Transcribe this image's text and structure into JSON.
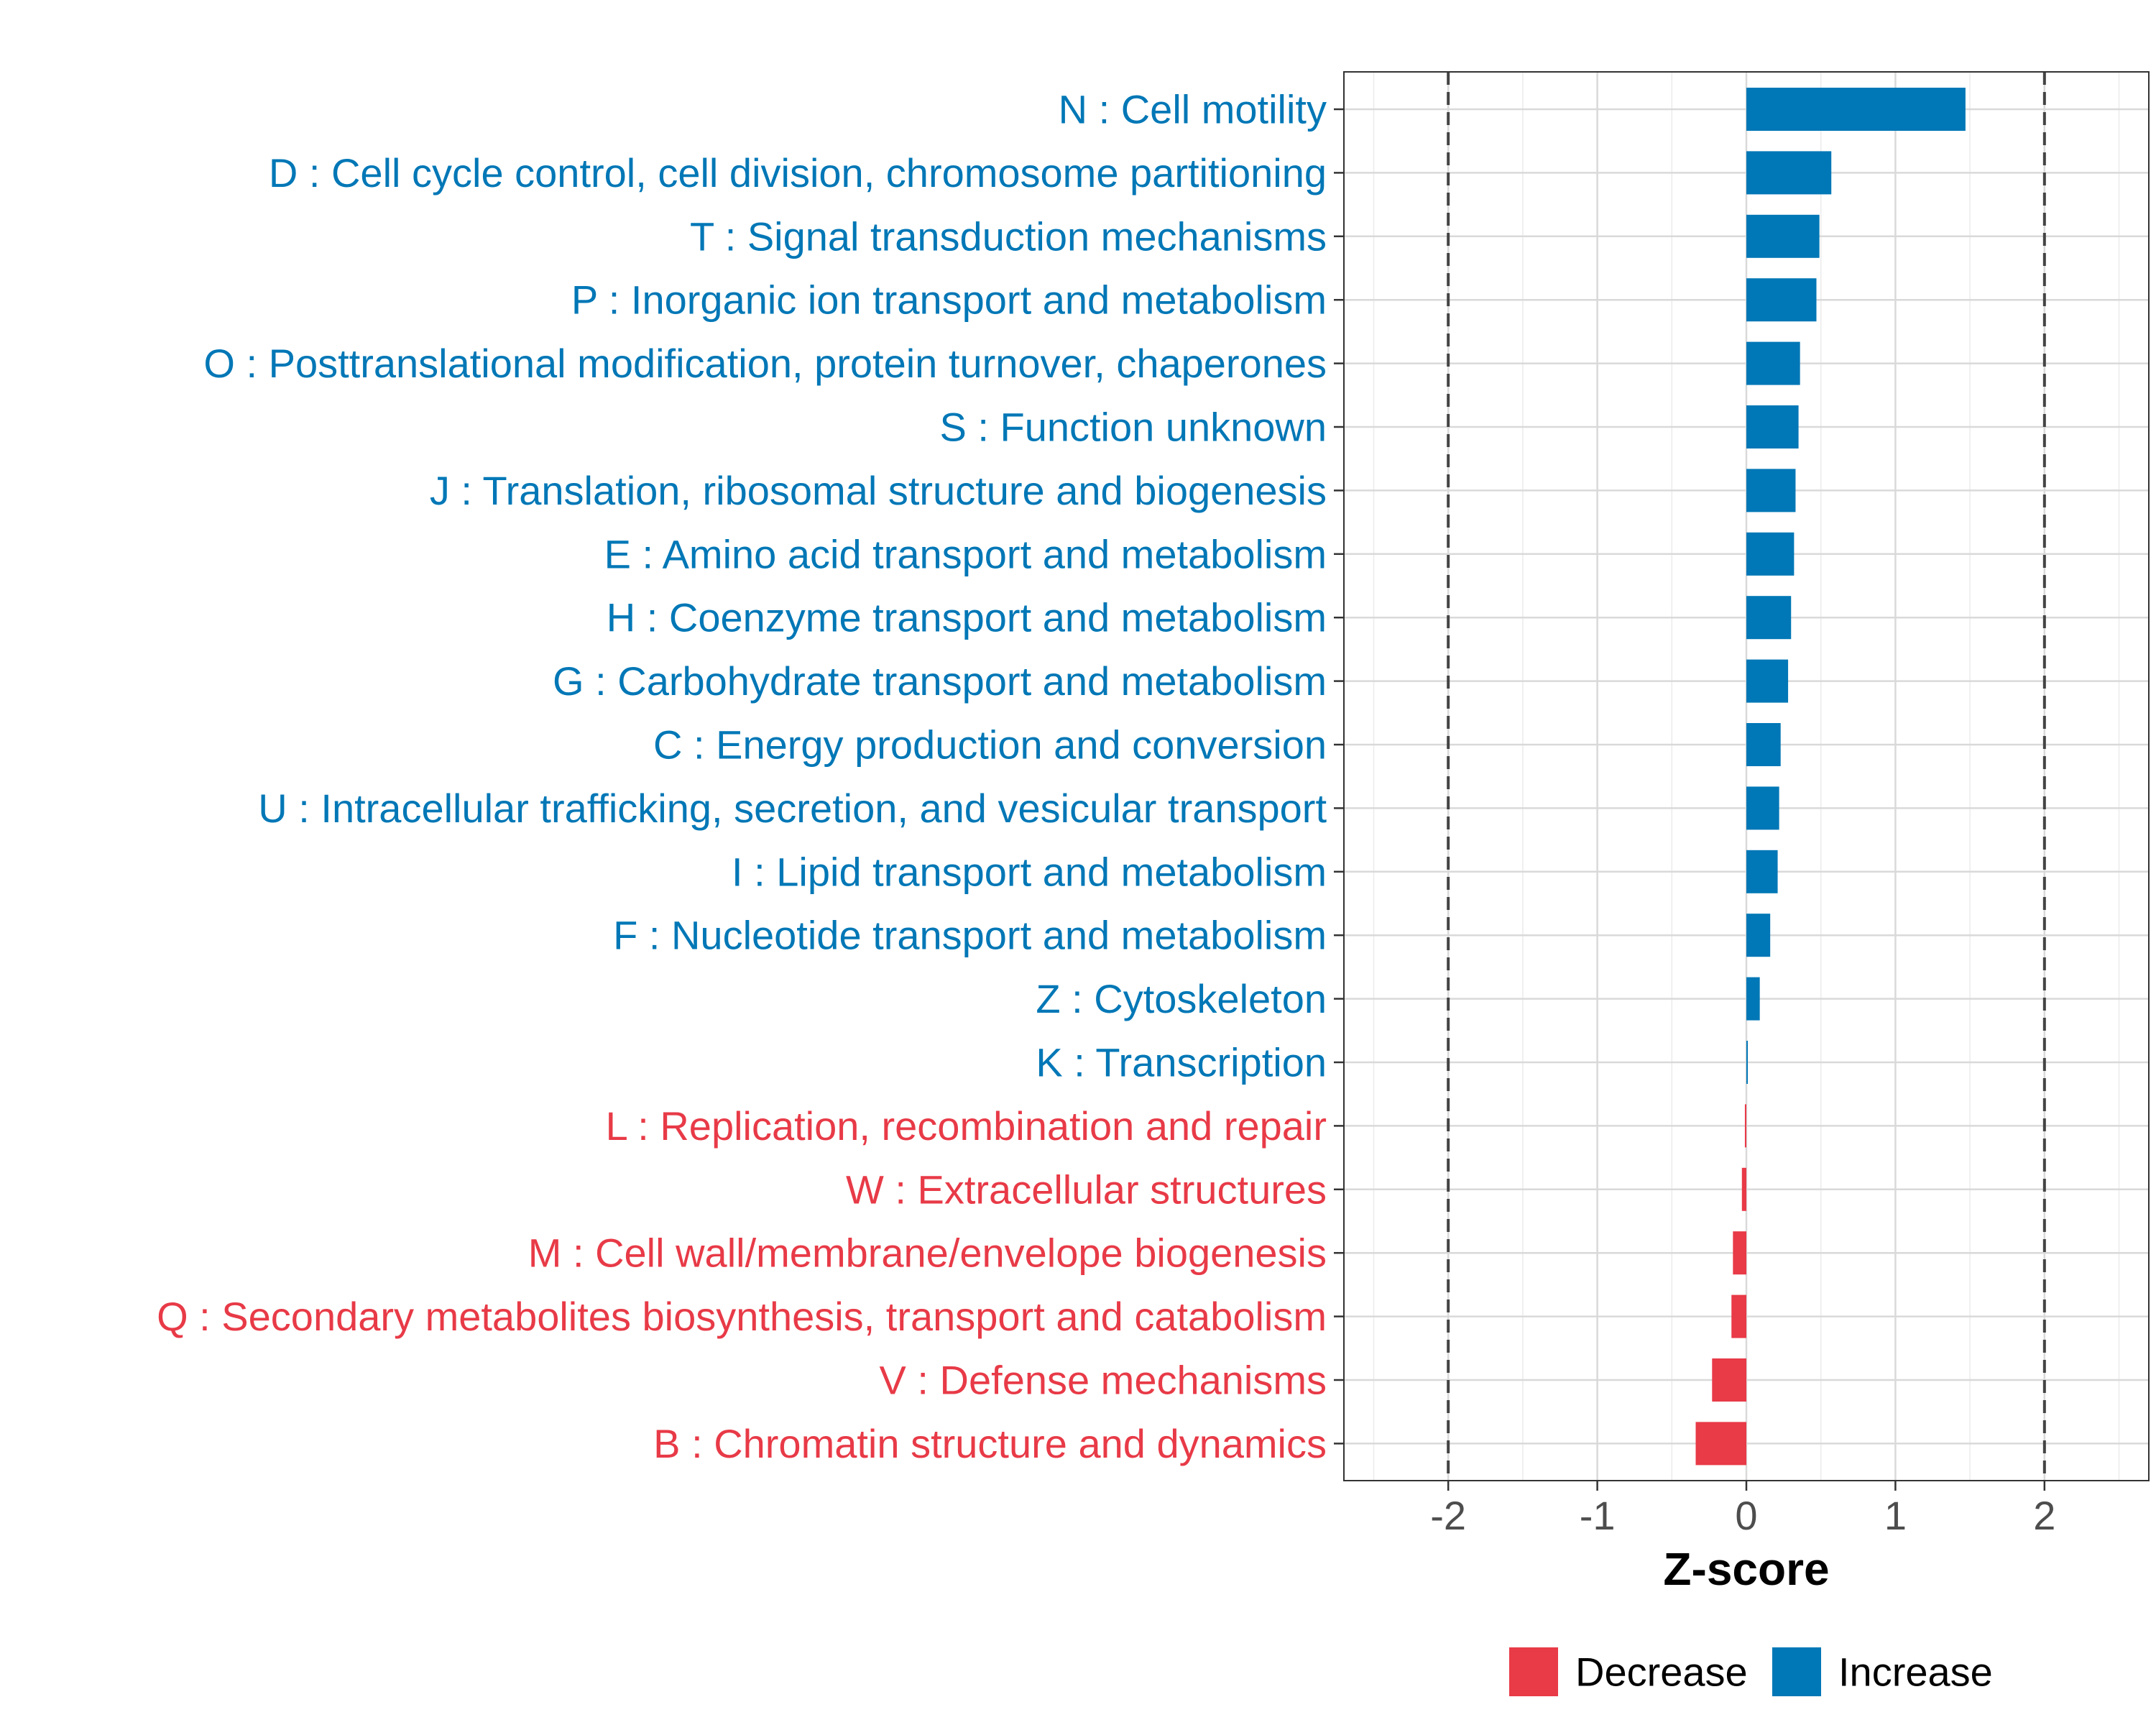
{
  "chart_data": {
    "type": "bar",
    "orientation": "horizontal",
    "title": "",
    "xlabel": "Z-score",
    "ylabel": "",
    "xlim": [
      -2.7,
      2.7
    ],
    "xticks": [
      -2,
      -1,
      0,
      1,
      2
    ],
    "xtick_labels": [
      "-2",
      "-1",
      "0",
      "1",
      "2"
    ],
    "reference_lines": [
      -2,
      2
    ],
    "grid": true,
    "legend_position": "bottom",
    "colors": {
      "Decrease": "#E83A47",
      "Increase": "#0077B6"
    },
    "legend": [
      {
        "label": "Decrease",
        "color": "#E83A47"
      },
      {
        "label": "Increase",
        "color": "#0077B6"
      }
    ],
    "categories": [
      "N : Cell motility",
      "D : Cell cycle control, cell division, chromosome partitioning",
      "T : Signal transduction mechanisms",
      "P : Inorganic ion transport and metabolism",
      "O : Posttranslational modification, protein turnover, chaperones",
      "S : Function unknown",
      "J : Translation, ribosomal structure and biogenesis",
      "E : Amino acid transport and metabolism",
      "H : Coenzyme transport and metabolism",
      "G : Carbohydrate transport and metabolism",
      "C : Energy production and conversion",
      "U : Intracellular trafficking, secretion, and vesicular transport",
      "I : Lipid transport and metabolism",
      "F : Nucleotide transport and metabolism",
      "Z : Cytoskeleton",
      "K : Transcription",
      "L : Replication, recombination and repair",
      "W : Extracellular structures",
      "M : Cell wall/membrane/envelope biogenesis",
      "Q : Secondary metabolites biosynthesis, transport and catabolism",
      "V : Defense mechanisms",
      "B : Chromatin structure and dynamics"
    ],
    "values": [
      1.47,
      0.57,
      0.49,
      0.47,
      0.36,
      0.35,
      0.33,
      0.32,
      0.3,
      0.28,
      0.23,
      0.22,
      0.21,
      0.16,
      0.09,
      0.005,
      -0.01,
      -0.03,
      -0.09,
      -0.1,
      -0.23,
      -0.34
    ],
    "groups": [
      "Increase",
      "Increase",
      "Increase",
      "Increase",
      "Increase",
      "Increase",
      "Increase",
      "Increase",
      "Increase",
      "Increase",
      "Increase",
      "Increase",
      "Increase",
      "Increase",
      "Increase",
      "Increase",
      "Decrease",
      "Decrease",
      "Decrease",
      "Decrease",
      "Decrease",
      "Decrease"
    ]
  }
}
